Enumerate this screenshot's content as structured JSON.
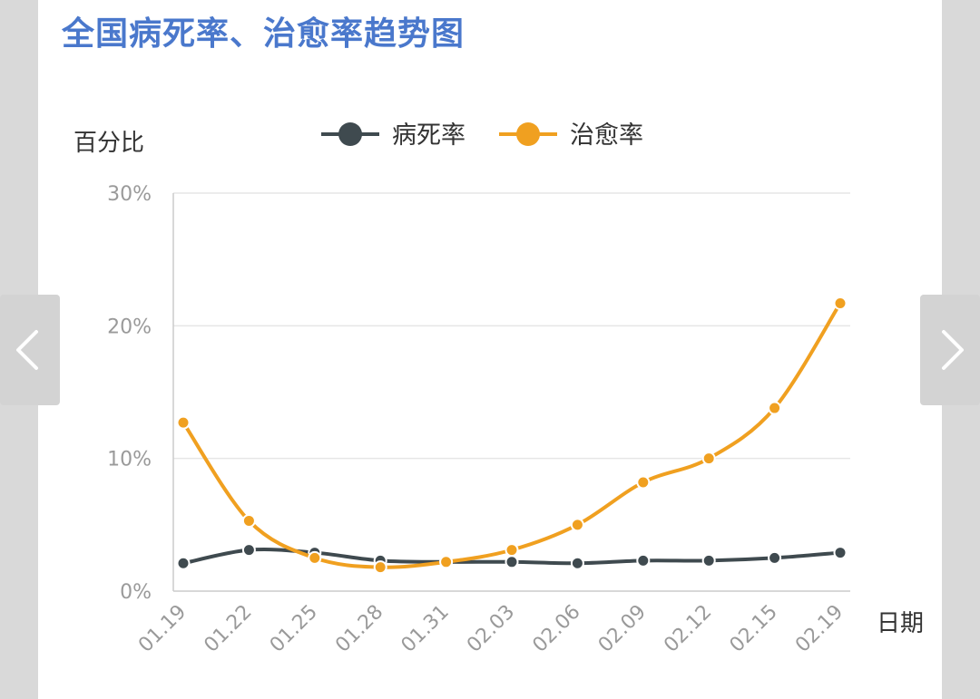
{
  "page": {
    "title": "全国病死率、治愈率趋势图"
  },
  "nav": {
    "prev_icon": "chevron-left-icon",
    "next_icon": "chevron-right-icon"
  },
  "colors": {
    "title": "#4a78cc",
    "death": "#3f4a4f",
    "cure": "#f0a020",
    "grid": "#e6e6e6",
    "axis_text": "#9a9a9a"
  },
  "chart_data": {
    "type": "line",
    "ylabel": "百分比",
    "xlabel": "日期",
    "ylim": [
      0,
      30
    ],
    "yticks": [
      "0%",
      "10%",
      "20%",
      "30%"
    ],
    "x": [
      "01.19",
      "01.22",
      "01.25",
      "01.28",
      "01.31",
      "02.03",
      "02.06",
      "02.09",
      "02.12",
      "02.15",
      "02.19"
    ],
    "grid": true,
    "legend": "top",
    "series": [
      {
        "name": "病死率",
        "color": "#3f4a4f",
        "values": [
          2.1,
          3.1,
          2.9,
          2.3,
          2.2,
          2.2,
          2.1,
          2.3,
          2.3,
          2.5,
          2.9
        ]
      },
      {
        "name": "治愈率",
        "color": "#f0a020",
        "values": [
          12.7,
          5.3,
          2.5,
          1.8,
          2.2,
          3.1,
          5.0,
          8.2,
          10.0,
          13.8,
          21.7
        ]
      }
    ]
  }
}
